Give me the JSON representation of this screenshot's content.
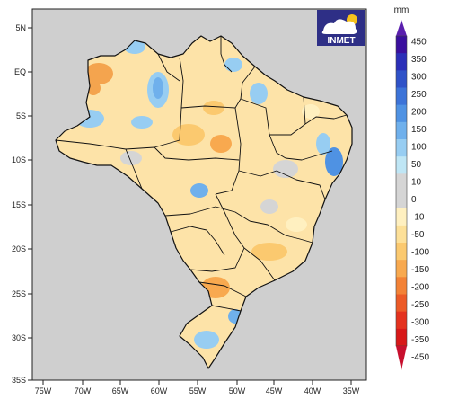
{
  "logo": {
    "text": "INMET"
  },
  "colorbar": {
    "unit": "mm",
    "labels": [
      "450",
      "350",
      "300",
      "250",
      "200",
      "150",
      "100",
      "50",
      "10",
      "0",
      "-10",
      "-50",
      "-100",
      "-150",
      "-200",
      "-250",
      "-300",
      "-350",
      "-450"
    ],
    "colors": [
      "#3a0f9e",
      "#2b2fb8",
      "#2f52c8",
      "#3c73d8",
      "#4f92e3",
      "#6fb0ec",
      "#97cdf2",
      "#bfe6f5",
      "#d5d5d5",
      "#d5d5d5",
      "#fff0c0",
      "#fde098",
      "#fbc96f",
      "#f8a94f",
      "#f38236",
      "#ec5a27",
      "#e4321e",
      "#d81818"
    ],
    "top_arrow_color": "#5a1fae",
    "bottom_arrow_color": "#c8102e"
  },
  "axes": {
    "y_ticks": [
      "5N",
      "EQ",
      "5S",
      "10S",
      "15S",
      "20S",
      "25S",
      "30S",
      "35S"
    ],
    "x_ticks": [
      "75W",
      "70W",
      "65W",
      "60W",
      "55W",
      "50W",
      "45W",
      "40W",
      "35W"
    ]
  },
  "colors": {
    "ocean": "#cfcfcf",
    "land_base": "#fde3a8"
  }
}
